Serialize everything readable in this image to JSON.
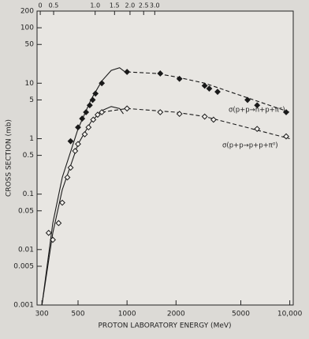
{
  "chart_data": {
    "type": "scatter",
    "x_label": "PROTON LABORATORY ENERGY (MeV)",
    "y_label": "CROSS SECTION (mb)",
    "xscale": "log",
    "yscale": "log",
    "xlim": [
      280,
      10500
    ],
    "ylim": [
      0.001,
      200
    ],
    "xticks": [
      300,
      500,
      1000,
      2000,
      5000,
      {
        "value": 10000,
        "label": "10,000"
      }
    ],
    "yticks": [
      200,
      100,
      50,
      10,
      5,
      1,
      0.5,
      0.1,
      0.05,
      0.01,
      0.005,
      0.001
    ],
    "x2ticks": [
      {
        "value": 293,
        "label": "0"
      },
      {
        "value": 354,
        "label": "0.5"
      },
      {
        "value": 637,
        "label": "1.0"
      },
      {
        "value": 838,
        "label": "1.5"
      },
      {
        "value": 1043,
        "label": "2.0"
      },
      {
        "value": 1265,
        "label": "2.5"
      },
      {
        "value": 1480,
        "label": "3.0"
      }
    ],
    "color": "#1a1a1a",
    "series": [
      {
        "name": "σ(p+p→n+p+π⁺)",
        "marker": "filled",
        "x": [
          450,
          500,
          530,
          560,
          590,
          615,
          640,
          700,
          1000,
          1600,
          2100,
          3000,
          3200,
          3600,
          5500,
          6300,
          9500
        ],
        "values": [
          0.9,
          1.6,
          2.3,
          3,
          4,
          5,
          6.5,
          10,
          16,
          15,
          12,
          9,
          8,
          7,
          5,
          4,
          3
        ]
      },
      {
        "name": "σ(p+p→p+p+π⁰)",
        "marker": "open",
        "x": [
          330,
          350,
          380,
          400,
          430,
          450,
          480,
          500,
          550,
          580,
          620,
          660,
          700,
          1000,
          1600,
          2100,
          3000,
          3400,
          6300,
          9500
        ],
        "values": [
          0.02,
          0.015,
          0.03,
          0.07,
          0.2,
          0.3,
          0.6,
          0.8,
          1.2,
          1.6,
          2.2,
          2.7,
          3,
          3.5,
          3,
          2.8,
          2.5,
          2.2,
          1.5,
          1.1
        ]
      }
    ],
    "curves": [
      {
        "style": "solid",
        "x": [
          300,
          350,
          400,
          500,
          600,
          700,
          800,
          900,
          1000
        ],
        "values": [
          0.001,
          0.03,
          0.2,
          1.5,
          5,
          11,
          17,
          19,
          15
        ]
      },
      {
        "style": "solid",
        "x": [
          300,
          350,
          400,
          500,
          600,
          700,
          800,
          900,
          950
        ],
        "values": [
          0.001,
          0.02,
          0.12,
          0.8,
          2,
          3.2,
          3.8,
          3.5,
          2.8
        ]
      },
      {
        "style": "dashed",
        "x": [
          1000,
          1500,
          2000,
          3000,
          5000,
          10000
        ],
        "values": [
          16,
          15,
          13,
          10,
          6,
          3
        ]
      },
      {
        "style": "dashed",
        "x": [
          700,
          1000,
          2000,
          3000,
          5000,
          10000
        ],
        "values": [
          3,
          3.5,
          3,
          2.5,
          1.7,
          1
        ]
      }
    ]
  }
}
